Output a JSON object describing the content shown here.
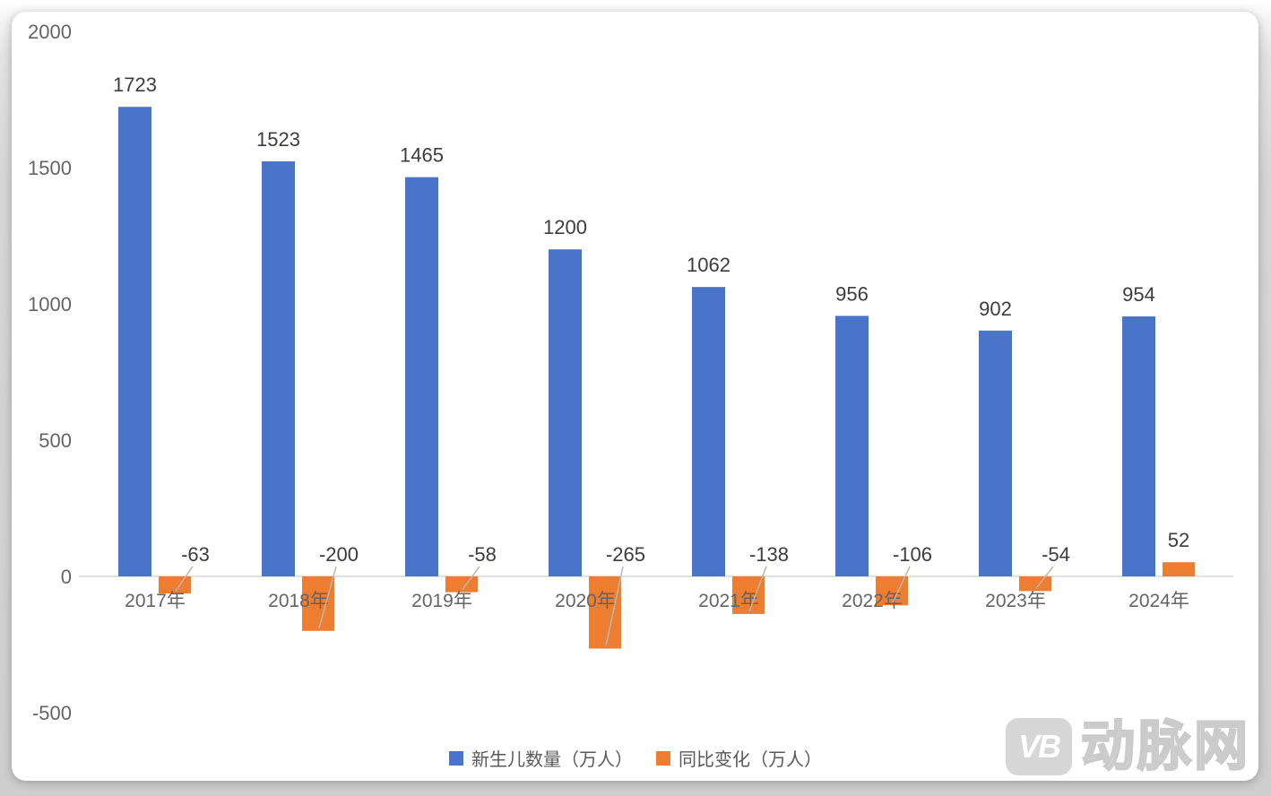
{
  "chart_data": {
    "type": "bar",
    "title": "",
    "xlabel": "",
    "ylabel": "",
    "categories": [
      "2017年",
      "2018年",
      "2019年",
      "2020年",
      "2021年",
      "2022年",
      "2023年",
      "2024年"
    ],
    "series": [
      {
        "name": "新生儿数量（万人）",
        "color": "#4a74c9",
        "values": [
          1723,
          1523,
          1465,
          1200,
          1062,
          956,
          902,
          954
        ]
      },
      {
        "name": "同比变化（万人）",
        "color": "#ed7d31",
        "values": [
          -63,
          -200,
          -58,
          -265,
          -138,
          -106,
          -54,
          52
        ]
      }
    ],
    "y_axis": {
      "ticks": [
        2000,
        1500,
        1000,
        500,
        0,
        -500
      ],
      "range": [
        -500,
        2000
      ]
    },
    "grid": false,
    "legend_position": "bottom",
    "data_labels": true
  },
  "watermark": {
    "logo_text": "VB",
    "brand_text": "动脉网"
  },
  "colors": {
    "axis_line": "#d9d9d9",
    "tick_text": "#646464",
    "value_text": "#3c3c3c",
    "leader_line": "#bdb6ae",
    "card_bg": "#ffffff"
  }
}
